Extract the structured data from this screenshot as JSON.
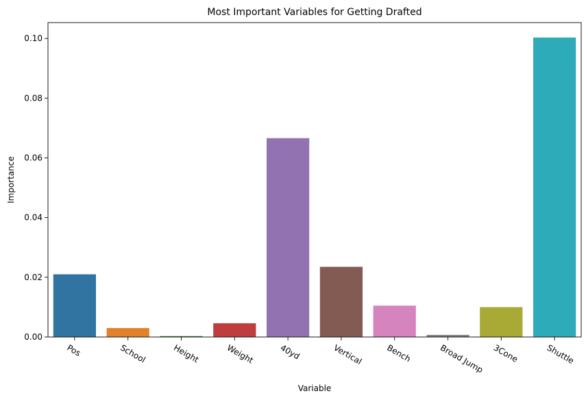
{
  "chart_data": {
    "type": "bar",
    "title": "Most Important Variables for Getting Drafted",
    "xlabel": "Variable",
    "ylabel": "Importance",
    "categories": [
      "Pos",
      "School",
      "Height",
      "Weight",
      "40yd",
      "Vertical",
      "Bench",
      "Broad Jump",
      "3Cone",
      "Shuttle"
    ],
    "values": [
      0.021,
      0.003,
      0.0003,
      0.0046,
      0.0666,
      0.0235,
      0.0105,
      0.0007,
      0.01,
      0.1003
    ],
    "colors": [
      "#3274a1",
      "#e1812c",
      "#3a923a",
      "#c03d3e",
      "#9372b2",
      "#845b53",
      "#d684bd",
      "#7f7f7f",
      "#a9aa35",
      "#2eabb8"
    ],
    "yticks": [
      "0.00",
      "0.02",
      "0.04",
      "0.06",
      "0.08",
      "0.10"
    ],
    "ylim": [
      0,
      0.1053
    ],
    "grid": false,
    "legend": "none"
  }
}
